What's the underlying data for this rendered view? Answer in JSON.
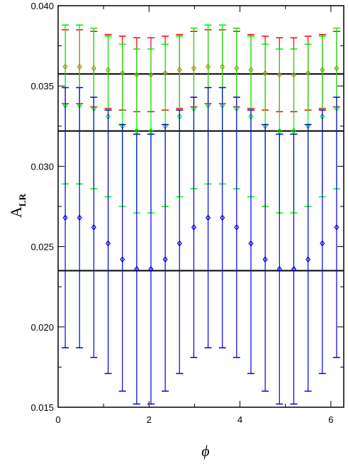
{
  "chart_data": {
    "type": "scatter",
    "title": "",
    "xlabel": "ϕ",
    "ylabel_main": "A",
    "ylabel_sub": "LR",
    "xlim": [
      0,
      6.283
    ],
    "ylim": [
      0.015,
      0.04
    ],
    "x_ticks": [
      0,
      2,
      4,
      6
    ],
    "x_tick_labels": [
      "0",
      "2",
      "4",
      "6"
    ],
    "y_ticks": [
      0.015,
      0.02,
      0.025,
      0.03,
      0.035,
      0.04
    ],
    "y_tick_labels": [
      "0.015",
      "0.020",
      "0.025",
      "0.030",
      "0.035",
      "0.040"
    ],
    "grid": false,
    "x": [
      0.157,
      0.471,
      0.785,
      1.1,
      1.414,
      1.728,
      2.042,
      2.356,
      2.67,
      2.985,
      3.299,
      3.613,
      3.927,
      4.241,
      4.555,
      4.869,
      5.184,
      5.498,
      5.812,
      6.126
    ],
    "hlines": [
      0.03575,
      0.0322,
      0.0235
    ],
    "series": [
      {
        "color": "#ff0000",
        "marker_color": "#b8860b",
        "y": [
          0.0362,
          0.0362,
          0.0361,
          0.036,
          0.0358,
          0.0357,
          0.0357,
          0.0358,
          0.036,
          0.0361,
          0.0362,
          0.0362,
          0.0361,
          0.036,
          0.0358,
          0.0357,
          0.0357,
          0.0358,
          0.036,
          0.0361
        ],
        "low": [
          0.0339,
          0.0339,
          0.0337,
          0.0336,
          0.0335,
          0.0334,
          0.0334,
          0.0335,
          0.0336,
          0.0337,
          0.0339,
          0.0339,
          0.0337,
          0.0336,
          0.0335,
          0.0334,
          0.0334,
          0.0335,
          0.0336,
          0.0337
        ],
        "high": [
          0.0385,
          0.0385,
          0.0384,
          0.0382,
          0.0381,
          0.038,
          0.038,
          0.0381,
          0.0382,
          0.0384,
          0.0385,
          0.0385,
          0.0384,
          0.0382,
          0.0381,
          0.038,
          0.038,
          0.0381,
          0.0382,
          0.0384
        ]
      },
      {
        "color": "#00ee00",
        "marker_color": "#00ee00",
        "y": [
          0.0338,
          0.0338,
          0.0336,
          0.0331,
          0.0325,
          0.0322,
          0.0322,
          0.0325,
          0.0331,
          0.0336,
          0.0338,
          0.0338,
          0.0336,
          0.0331,
          0.0325,
          0.0322,
          0.0322,
          0.0325,
          0.0331,
          0.0336
        ],
        "low": [
          0.0289,
          0.0289,
          0.0286,
          0.0281,
          0.0275,
          0.0271,
          0.0271,
          0.0275,
          0.0281,
          0.0286,
          0.0289,
          0.0289,
          0.0286,
          0.0281,
          0.0275,
          0.0271,
          0.0271,
          0.0275,
          0.0281,
          0.0286
        ],
        "high": [
          0.0388,
          0.0388,
          0.0386,
          0.0381,
          0.0376,
          0.0373,
          0.0373,
          0.0376,
          0.0381,
          0.0386,
          0.0388,
          0.0388,
          0.0386,
          0.0381,
          0.0376,
          0.0373,
          0.0373,
          0.0376,
          0.0381,
          0.0386
        ]
      },
      {
        "color": "#0000dd",
        "marker_color": "#0000dd",
        "y": [
          0.0268,
          0.0268,
          0.0262,
          0.0252,
          0.0242,
          0.0236,
          0.0236,
          0.0242,
          0.0252,
          0.0262,
          0.0268,
          0.0268,
          0.0262,
          0.0252,
          0.0242,
          0.0236,
          0.0236,
          0.0242,
          0.0252,
          0.0262
        ],
        "low": [
          0.0187,
          0.0187,
          0.0181,
          0.0171,
          0.016,
          0.0152,
          0.0152,
          0.016,
          0.0171,
          0.0181,
          0.0187,
          0.0187,
          0.0181,
          0.0171,
          0.016,
          0.0152,
          0.0152,
          0.016,
          0.0171,
          0.0181
        ],
        "high": [
          0.0349,
          0.0349,
          0.0343,
          0.0335,
          0.0326,
          0.032,
          0.032,
          0.0326,
          0.0335,
          0.0343,
          0.0349,
          0.0349,
          0.0343,
          0.0335,
          0.0326,
          0.032,
          0.032,
          0.0326,
          0.0335,
          0.0343
        ]
      }
    ]
  }
}
